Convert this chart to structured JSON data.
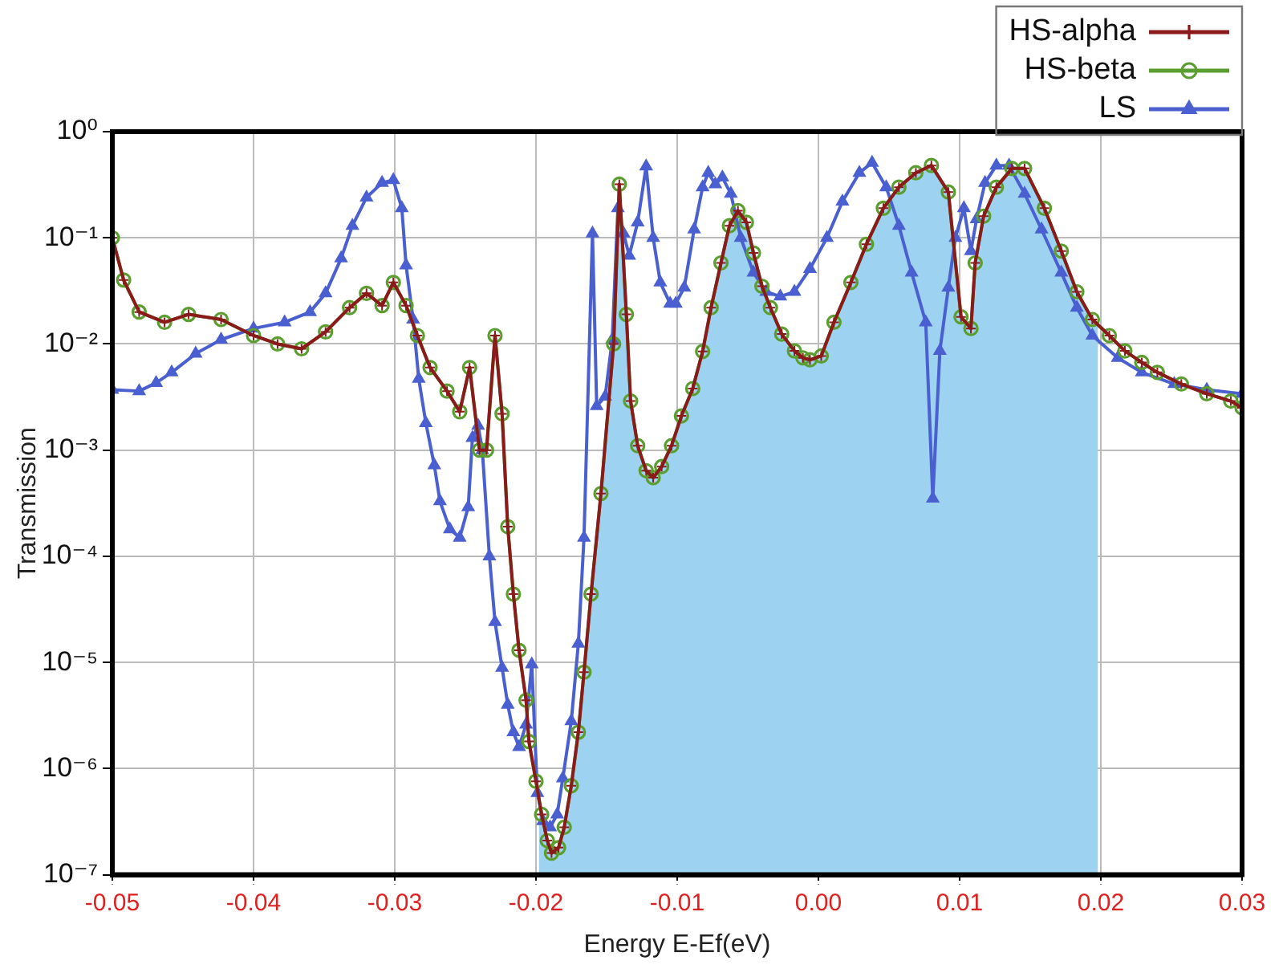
{
  "chart_data": {
    "type": "line",
    "xlabel": "Energy E-Ef(eV)",
    "ylabel": "Transmission",
    "log": "y",
    "grid": true,
    "legend": "top right",
    "xlim": [
      -0.05,
      0.03
    ],
    "xticks": [
      -0.05,
      -0.04,
      -0.03,
      -0.02,
      -0.01,
      {
        "value": 0,
        "label": "0.00"
      },
      0.01,
      0.02,
      0.03
    ],
    "ylim": [
      1e-07,
      1
    ],
    "yticks": [
      {
        "value": 1e-07,
        "label": "10⁻⁷"
      },
      {
        "value": 1e-06,
        "label": "10⁻⁶"
      },
      {
        "value": 1e-05,
        "label": "10⁻⁵"
      },
      {
        "value": 0.0001,
        "label": "10⁻⁴"
      },
      {
        "value": 0.001,
        "label": "10⁻³"
      },
      {
        "value": 0.01,
        "label": "10⁻²"
      },
      {
        "value": 0.1,
        "label": "10⁻¹"
      },
      {
        "value": 1,
        "label": "10⁰"
      }
    ],
    "series": [
      {
        "type": "area",
        "color": "#9dd3f0",
        "x": [
          -0.0198,
          -0.0196,
          -0.0192,
          -0.0189,
          -0.0184,
          -0.018,
          -0.0175,
          -0.017,
          -0.0166,
          -0.0161,
          -0.0154,
          -0.0145,
          -0.0141,
          -0.0136,
          -0.0133,
          -0.0128,
          -0.0122,
          -0.0117,
          -0.0111,
          -0.0104,
          -0.0097,
          -0.0089,
          -0.0082,
          -0.0076,
          -0.0069,
          -0.0063,
          -0.0057,
          -0.0051,
          -0.0046,
          -0.004,
          -0.0034,
          -0.0026,
          -0.0017,
          -0.0011,
          -0.0006,
          0.0002,
          0.0011,
          0.0023,
          0.0034,
          0.0046,
          0.0057,
          0.0069,
          0.008,
          0.0092,
          0.0101,
          0.0108,
          0.0111,
          0.0117,
          0.0126,
          0.0137,
          0.0146,
          0.016,
          0.0172,
          0.0183,
          0.0194,
          0.0198
        ],
        "values": [
          5.5e-07,
          3.7e-07,
          2.1e-07,
          1.6e-07,
          1.8e-07,
          2.8e-07,
          6.9e-07,
          2.2e-06,
          8.1e-06,
          4.4e-05,
          0.00039,
          0.01,
          0.32,
          0.019,
          0.0029,
          0.0011,
          0.00064,
          0.00055,
          0.0007,
          0.0011,
          0.0021,
          0.0038,
          0.0085,
          0.022,
          0.058,
          0.13,
          0.18,
          0.14,
          0.072,
          0.035,
          0.022,
          0.0124,
          0.0086,
          0.0074,
          0.0071,
          0.0077,
          0.016,
          0.038,
          0.087,
          0.19,
          0.3,
          0.41,
          0.48,
          0.27,
          0.018,
          0.014,
          0.058,
          0.16,
          0.3,
          0.45,
          0.45,
          0.19,
          0.075,
          0.031,
          0.017,
          0.015
        ]
      },
      {
        "name": "HS-alpha",
        "color": "#8b1a1a",
        "marker": "cross",
        "x": [
          -0.05,
          -0.0492,
          -0.0481,
          -0.0463,
          -0.0446,
          -0.0423,
          -0.04,
          -0.0383,
          -0.0366,
          -0.0349,
          -0.0332,
          -0.032,
          -0.0309,
          -0.0301,
          -0.0292,
          -0.0284,
          -0.0275,
          -0.0263,
          -0.0254,
          -0.0247,
          -0.024,
          -0.0235,
          -0.0229,
          -0.0224,
          -0.022,
          -0.0216,
          -0.0212,
          -0.0207,
          -0.0205,
          -0.02,
          -0.0196,
          -0.0192,
          -0.0189,
          -0.0184,
          -0.018,
          -0.0175,
          -0.017,
          -0.0166,
          -0.0161,
          -0.0154,
          -0.0145,
          -0.0141,
          -0.0136,
          -0.0133,
          -0.0128,
          -0.0122,
          -0.0117,
          -0.0111,
          -0.0104,
          -0.0097,
          -0.0089,
          -0.0082,
          -0.0076,
          -0.0069,
          -0.0063,
          -0.0057,
          -0.0051,
          -0.0046,
          -0.004,
          -0.0034,
          -0.0026,
          -0.0017,
          -0.0011,
          -0.0006,
          0.0002,
          0.0011,
          0.0023,
          0.0034,
          0.0046,
          0.0057,
          0.0069,
          0.008,
          0.0092,
          0.0101,
          0.0108,
          0.0111,
          0.0117,
          0.0126,
          0.0137,
          0.0146,
          0.016,
          0.0172,
          0.0183,
          0.0194,
          0.0206,
          0.0217,
          0.0229,
          0.024,
          0.0257,
          0.0275,
          0.0292,
          0.03
        ],
        "values": [
          0.1,
          0.04,
          0.02,
          0.016,
          0.019,
          0.017,
          0.012,
          0.01,
          0.009,
          0.013,
          0.022,
          0.03,
          0.023,
          0.038,
          0.023,
          0.012,
          0.006,
          0.0036,
          0.0023,
          0.006,
          0.001,
          0.001,
          0.012,
          0.0022,
          0.00019,
          4.4e-05,
          1.3e-05,
          4.4e-06,
          1.8e-06,
          7.6e-07,
          3.7e-07,
          2.1e-07,
          1.6e-07,
          1.8e-07,
          2.8e-07,
          6.9e-07,
          2.2e-06,
          8.1e-06,
          4.4e-05,
          0.00039,
          0.01,
          0.32,
          0.019,
          0.0029,
          0.0011,
          0.00064,
          0.00055,
          0.0007,
          0.0011,
          0.0021,
          0.0038,
          0.0085,
          0.022,
          0.058,
          0.13,
          0.18,
          0.14,
          0.072,
          0.035,
          0.022,
          0.0124,
          0.0086,
          0.0074,
          0.0071,
          0.0077,
          0.016,
          0.038,
          0.087,
          0.19,
          0.3,
          0.41,
          0.48,
          0.27,
          0.018,
          0.014,
          0.058,
          0.16,
          0.3,
          0.45,
          0.45,
          0.19,
          0.075,
          0.031,
          0.017,
          0.012,
          0.0086,
          0.0067,
          0.0054,
          0.0042,
          0.0034,
          0.0029,
          0.0025
        ]
      },
      {
        "name": "HS-beta",
        "color": "#5a9e2f",
        "marker": "circle",
        "x": [
          -0.05,
          -0.0492,
          -0.0481,
          -0.0463,
          -0.0446,
          -0.0423,
          -0.04,
          -0.0383,
          -0.0366,
          -0.0349,
          -0.0332,
          -0.032,
          -0.0309,
          -0.0301,
          -0.0292,
          -0.0284,
          -0.0275,
          -0.0263,
          -0.0254,
          -0.0247,
          -0.024,
          -0.0235,
          -0.0229,
          -0.0224,
          -0.022,
          -0.0216,
          -0.0212,
          -0.0207,
          -0.0205,
          -0.02,
          -0.0196,
          -0.0192,
          -0.0189,
          -0.0184,
          -0.018,
          -0.0175,
          -0.017,
          -0.0166,
          -0.0161,
          -0.0154,
          -0.0145,
          -0.0141,
          -0.0136,
          -0.0133,
          -0.0128,
          -0.0122,
          -0.0117,
          -0.0111,
          -0.0104,
          -0.0097,
          -0.0089,
          -0.0082,
          -0.0076,
          -0.0069,
          -0.0063,
          -0.0057,
          -0.0051,
          -0.0046,
          -0.004,
          -0.0034,
          -0.0026,
          -0.0017,
          -0.0011,
          -0.0006,
          0.0002,
          0.0011,
          0.0023,
          0.0034,
          0.0046,
          0.0057,
          0.0069,
          0.008,
          0.0092,
          0.0101,
          0.0108,
          0.0111,
          0.0117,
          0.0126,
          0.0137,
          0.0146,
          0.016,
          0.0172,
          0.0183,
          0.0194,
          0.0206,
          0.0217,
          0.0229,
          0.024,
          0.0257,
          0.0275,
          0.0292,
          0.03
        ],
        "values": [
          0.1,
          0.04,
          0.02,
          0.016,
          0.019,
          0.017,
          0.012,
          0.01,
          0.009,
          0.013,
          0.022,
          0.03,
          0.023,
          0.038,
          0.023,
          0.012,
          0.006,
          0.0036,
          0.0023,
          0.006,
          0.001,
          0.001,
          0.012,
          0.0022,
          0.00019,
          4.4e-05,
          1.3e-05,
          4.4e-06,
          1.8e-06,
          7.6e-07,
          3.7e-07,
          2.1e-07,
          1.6e-07,
          1.8e-07,
          2.8e-07,
          6.9e-07,
          2.2e-06,
          8.1e-06,
          4.4e-05,
          0.00039,
          0.01,
          0.32,
          0.019,
          0.0029,
          0.0011,
          0.00064,
          0.00055,
          0.0007,
          0.0011,
          0.0021,
          0.0038,
          0.0085,
          0.022,
          0.058,
          0.13,
          0.18,
          0.14,
          0.072,
          0.035,
          0.022,
          0.0124,
          0.0086,
          0.0074,
          0.0071,
          0.0077,
          0.016,
          0.038,
          0.087,
          0.19,
          0.3,
          0.41,
          0.48,
          0.27,
          0.018,
          0.014,
          0.058,
          0.16,
          0.3,
          0.45,
          0.45,
          0.19,
          0.075,
          0.031,
          0.017,
          0.012,
          0.0086,
          0.0067,
          0.0054,
          0.0042,
          0.0034,
          0.0029,
          0.0025
        ]
      },
      {
        "name": "LS",
        "color": "#4a5fd0",
        "marker": "triangle",
        "x": [
          -0.05,
          -0.0481,
          -0.0469,
          -0.0458,
          -0.0441,
          -0.0423,
          -0.04,
          -0.0378,
          -0.036,
          -0.0349,
          -0.0338,
          -0.033,
          -0.032,
          -0.0309,
          -0.0301,
          -0.0295,
          -0.0292,
          -0.0287,
          -0.0283,
          -0.0278,
          -0.0272,
          -0.0268,
          -0.0261,
          -0.0254,
          -0.0248,
          -0.0245,
          -0.0241,
          -0.0238,
          -0.0233,
          -0.0229,
          -0.0224,
          -0.022,
          -0.0216,
          -0.0212,
          -0.0207,
          -0.0203,
          -0.0199,
          -0.0195,
          -0.019,
          -0.0185,
          -0.0181,
          -0.0175,
          -0.017,
          -0.0166,
          -0.016,
          -0.0157,
          -0.0151,
          -0.0146,
          -0.0142,
          -0.0138,
          -0.0134,
          -0.0128,
          -0.0122,
          -0.0117,
          -0.0112,
          -0.0105,
          -0.0101,
          -0.0095,
          -0.0088,
          -0.0082,
          -0.0078,
          -0.0073,
          -0.0068,
          -0.0062,
          -0.0055,
          -0.0046,
          -0.0037,
          -0.0027,
          -0.0017,
          -0.0006,
          0.0006,
          0.0017,
          0.0029,
          0.0038,
          0.0048,
          0.0057,
          0.0066,
          0.0076,
          0.0081,
          0.0086,
          0.0092,
          0.0097,
          0.0103,
          0.0108,
          0.0112,
          0.0118,
          0.0126,
          0.0135,
          0.0146,
          0.0158,
          0.0172,
          0.0183,
          0.0194,
          0.0212,
          0.0229,
          0.0252,
          0.0275,
          0.03
        ],
        "values": [
          0.0037,
          0.0036,
          0.0043,
          0.0054,
          0.0081,
          0.011,
          0.014,
          0.016,
          0.02,
          0.03,
          0.064,
          0.13,
          0.24,
          0.33,
          0.35,
          0.19,
          0.055,
          0.017,
          0.0047,
          0.0018,
          0.00072,
          0.00033,
          0.00018,
          0.00015,
          0.00029,
          0.0013,
          0.0017,
          0.001,
          0.0001,
          2.4e-05,
          8.9e-06,
          4e-06,
          2.2e-06,
          1.6e-06,
          2.6e-06,
          9.6e-06,
          5.9e-07,
          3.2e-07,
          2.8e-07,
          3.7e-07,
          8.1e-07,
          2.8e-06,
          1.5e-05,
          0.00015,
          0.11,
          0.0026,
          0.0032,
          0.011,
          0.19,
          0.11,
          0.068,
          0.14,
          0.47,
          0.1,
          0.038,
          0.024,
          0.024,
          0.034,
          0.12,
          0.3,
          0.41,
          0.32,
          0.37,
          0.26,
          0.1,
          0.047,
          0.031,
          0.028,
          0.031,
          0.051,
          0.1,
          0.22,
          0.41,
          0.51,
          0.3,
          0.13,
          0.047,
          0.016,
          0.00035,
          0.0086,
          0.034,
          0.1,
          0.19,
          0.075,
          0.15,
          0.33,
          0.48,
          0.48,
          0.26,
          0.12,
          0.047,
          0.022,
          0.012,
          0.0074,
          0.0054,
          0.0042,
          0.0037,
          0.0034
        ]
      }
    ]
  }
}
